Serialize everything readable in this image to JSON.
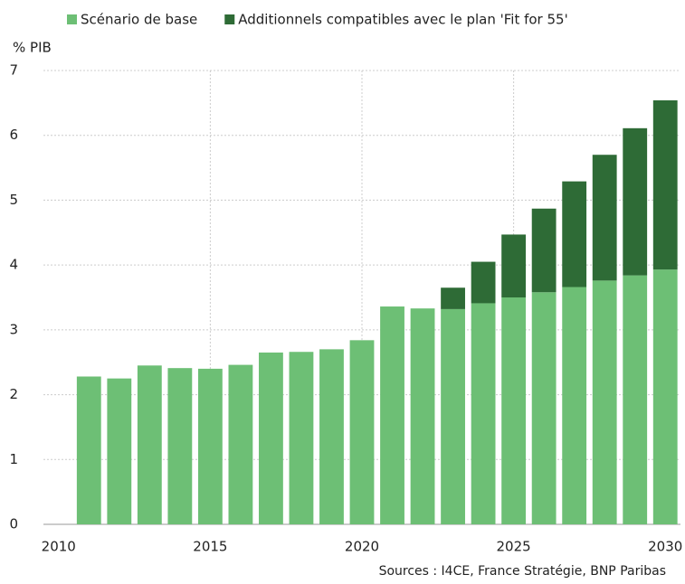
{
  "chart_data": {
    "type": "stacked_bar",
    "y_label": "% PIB",
    "source": "Sources : I4CE, France Stratégie, BNP Paribas",
    "x": [
      2011,
      2012,
      2013,
      2014,
      2015,
      2016,
      2017,
      2018,
      2019,
      2020,
      2021,
      2022,
      2023,
      2024,
      2025,
      2026,
      2027,
      2028,
      2029,
      2030
    ],
    "series": [
      {
        "name": "Scénario de base",
        "color": "#6dbf75",
        "values": [
          2.28,
          2.25,
          2.45,
          2.41,
          2.4,
          2.46,
          2.65,
          2.66,
          2.7,
          2.84,
          3.36,
          3.33,
          3.32,
          3.41,
          3.5,
          3.58,
          3.66,
          3.76,
          3.84,
          3.93
        ]
      },
      {
        "name": "Additionnels compatibles avec le plan 'Fit for 55'",
        "color": "#2e6b36",
        "values": [
          null,
          null,
          null,
          null,
          null,
          null,
          null,
          null,
          null,
          null,
          null,
          null,
          0.33,
          0.64,
          0.97,
          1.29,
          1.63,
          1.94,
          2.27,
          2.61
        ]
      }
    ],
    "xlim": [
      2009.5,
      2030.5
    ],
    "xticks": [
      2010,
      2015,
      2020,
      2025,
      2030
    ],
    "ylim": [
      0,
      7
    ],
    "yticks": [
      0,
      1,
      2,
      3,
      4,
      5,
      6,
      7
    ],
    "grid": true,
    "legend": "top"
  }
}
